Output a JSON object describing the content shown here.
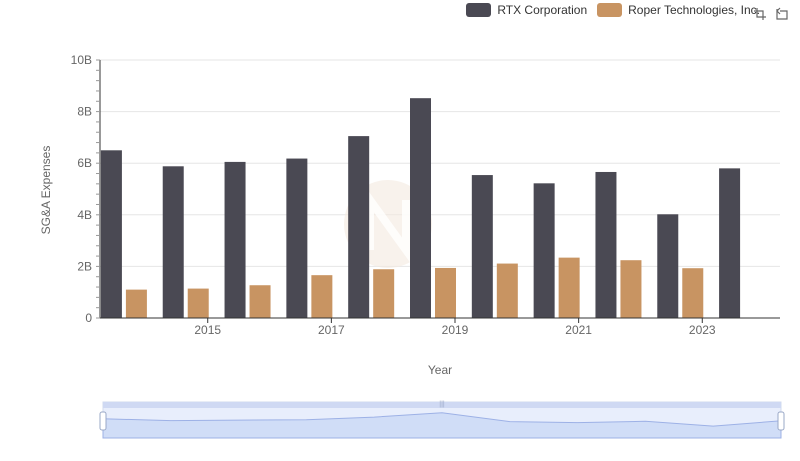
{
  "legend": {
    "items": [
      {
        "label": "RTX Corporation",
        "color": "#4a4953"
      },
      {
        "label": "Roper Technologies, Inc.",
        "color": "#c89462"
      }
    ]
  },
  "toolbox": {
    "icons": [
      "zoom-icon",
      "restore-icon"
    ]
  },
  "chart_data": {
    "type": "bar",
    "xlabel": "Year",
    "ylabel": "SG&A Expenses",
    "categories": [
      "2014",
      "2015",
      "2016",
      "2017",
      "2018",
      "2019",
      "2020",
      "2021",
      "2022",
      "2023",
      "2024"
    ],
    "x_tick_labels": [
      "2015",
      "2017",
      "2019",
      "2021",
      "2023"
    ],
    "y_tick_labels": [
      "0",
      "2B",
      "4B",
      "6B",
      "8B",
      "10B"
    ],
    "ylim": [
      0,
      10000000000
    ],
    "grid": true,
    "legend_position": "top-right",
    "series": [
      {
        "name": "RTX Corporation",
        "color": "#4a4953",
        "values": [
          6500000000,
          5880000000,
          6050000000,
          6180000000,
          7050000000,
          8520000000,
          5540000000,
          5220000000,
          5660000000,
          4020000000,
          5800000000
        ]
      },
      {
        "name": "Roper Technologies, Inc.",
        "color": "#c89462",
        "values": [
          1100000000,
          1140000000,
          1270000000,
          1660000000,
          1890000000,
          1940000000,
          2110000000,
          2340000000,
          2240000000,
          1930000000,
          null
        ]
      }
    ]
  }
}
